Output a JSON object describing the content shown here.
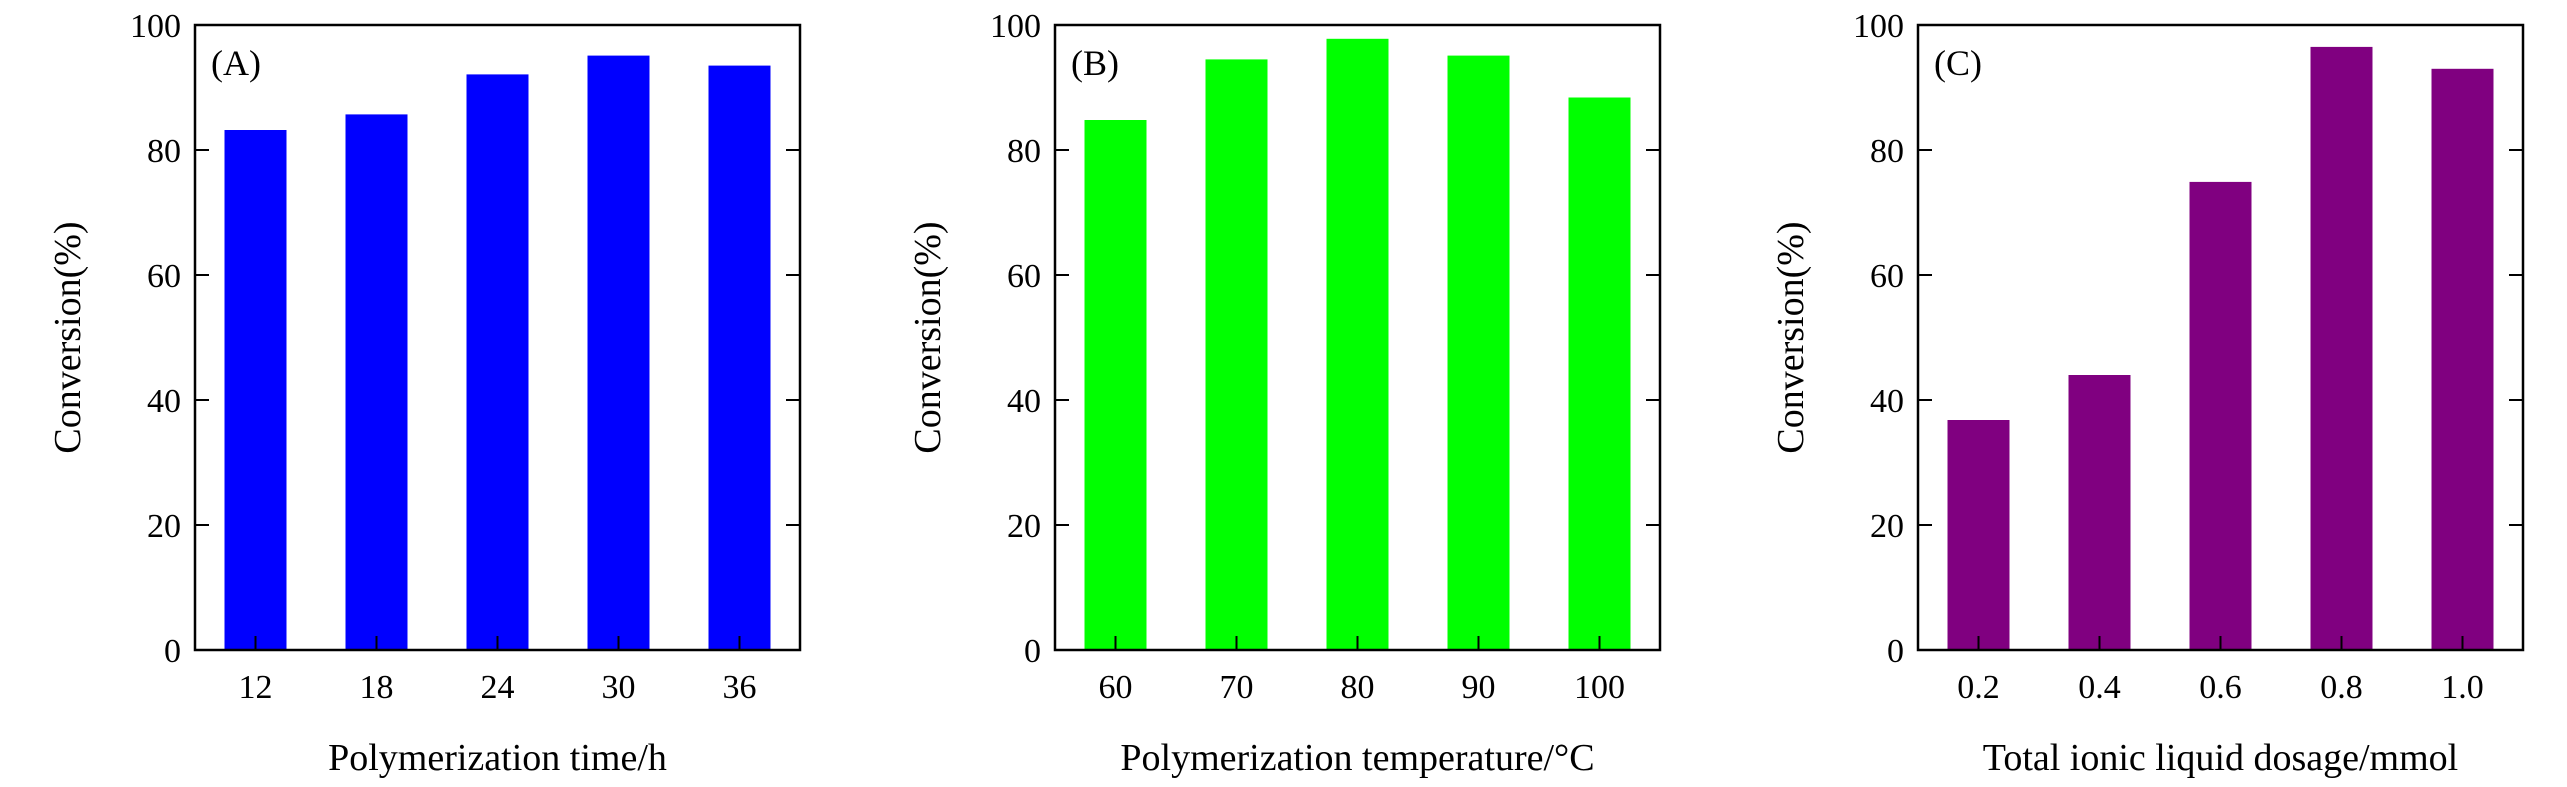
{
  "chart_data": [
    {
      "type": "bar",
      "panel_label": "(A)",
      "categories": [
        "12",
        "18",
        "24",
        "30",
        "36"
      ],
      "values": [
        83.2,
        85.7,
        92.1,
        95.1,
        93.5
      ],
      "xlabel": "Polymerization time/h",
      "ylabel": "Conversion(%)",
      "ylim": [
        0,
        100
      ],
      "yticks": [
        "0",
        "20",
        "40",
        "60",
        "80",
        "100"
      ],
      "bar_color": "#0000ff",
      "grid": false
    },
    {
      "type": "bar",
      "panel_label": "(B)",
      "categories": [
        "60",
        "70",
        "80",
        "90",
        "100"
      ],
      "values": [
        84.8,
        94.5,
        97.8,
        95.1,
        88.4
      ],
      "xlabel": "Polymerization temperature/°C",
      "ylabel": "Conversion(%)",
      "ylim": [
        0,
        100
      ],
      "yticks": [
        "0",
        "20",
        "40",
        "60",
        "80",
        "100"
      ],
      "bar_color": "#00ff00",
      "grid": false
    },
    {
      "type": "bar",
      "panel_label": "(C)",
      "categories": [
        "0.2",
        "0.4",
        "0.6",
        "0.8",
        "1.0"
      ],
      "values": [
        36.8,
        44.0,
        74.9,
        96.5,
        93.0
      ],
      "xlabel": "Total ionic liquid dosage/mmol",
      "ylabel": "Conversion(%)",
      "ylim": [
        0,
        100
      ],
      "yticks": [
        "0",
        "20",
        "40",
        "60",
        "80",
        "100"
      ],
      "bar_color": "#800080",
      "grid": false
    }
  ]
}
